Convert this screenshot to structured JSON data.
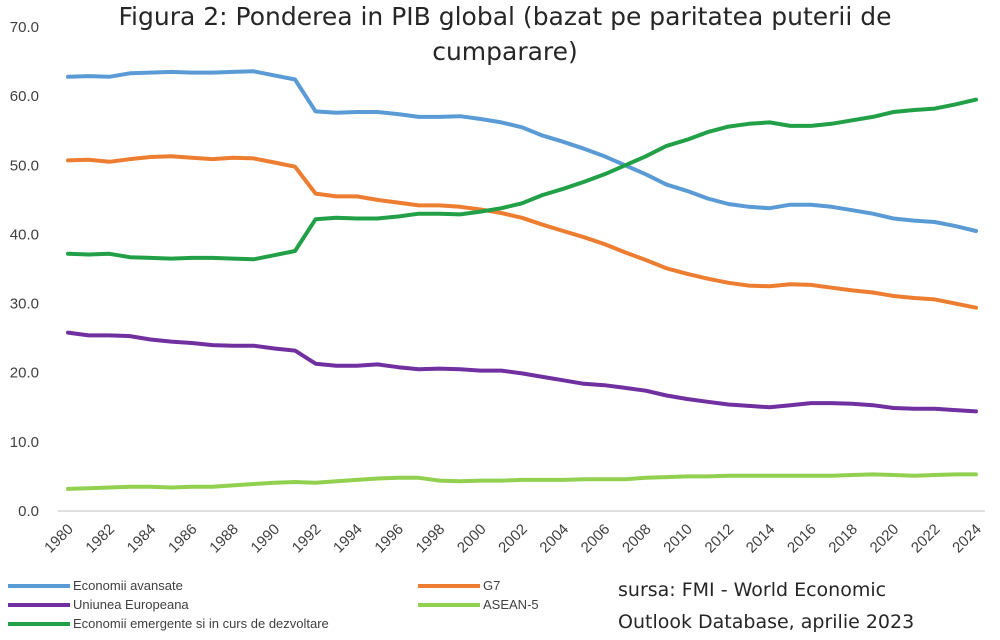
{
  "chart_data": {
    "type": "line",
    "title_lines": [
      "Figura 2: Ponderea in PIB global (bazat pe paritatea puterii de",
      "cumparare)"
    ],
    "source_lines": [
      "sursa: FMI - World Economic",
      "Outlook Database, aprilie 2023"
    ],
    "x": [
      1980,
      1981,
      1982,
      1983,
      1984,
      1985,
      1986,
      1987,
      1988,
      1989,
      1990,
      1991,
      1992,
      1993,
      1994,
      1995,
      1996,
      1997,
      1998,
      1999,
      2000,
      2001,
      2002,
      2003,
      2004,
      2005,
      2006,
      2007,
      2008,
      2009,
      2010,
      2011,
      2012,
      2013,
      2014,
      2015,
      2016,
      2017,
      2018,
      2019,
      2020,
      2021,
      2022,
      2023,
      2024
    ],
    "x_tick_labels": [
      "1980",
      "1982",
      "1984",
      "1986",
      "1988",
      "1990",
      "1992",
      "1994",
      "1996",
      "1998",
      "2000",
      "2002",
      "2004",
      "2006",
      "2008",
      "2010",
      "2012",
      "2014",
      "2016",
      "2018",
      "2020",
      "2022",
      "2024"
    ],
    "y_tick_labels": [
      "0.0",
      "10.0",
      "20.0",
      "30.0",
      "40.0",
      "50.0",
      "60.0",
      "70.0"
    ],
    "ylim": [
      0,
      70
    ],
    "grid": false,
    "legend_position": "bottom-left",
    "series": [
      {
        "name": "Economii avansate",
        "color": "#5b9bd5",
        "values": [
          62.8,
          62.9,
          62.8,
          63.3,
          63.4,
          63.5,
          63.4,
          63.4,
          63.5,
          63.6,
          63.0,
          62.4,
          57.8,
          57.6,
          57.7,
          57.7,
          57.4,
          57.0,
          57.0,
          57.1,
          56.7,
          56.2,
          55.5,
          54.3,
          53.4,
          52.4,
          51.3,
          50.0,
          48.7,
          47.2,
          46.3,
          45.2,
          44.4,
          44.0,
          43.8,
          44.3,
          44.3,
          44.0,
          43.5,
          43.0,
          42.3,
          42.0,
          41.8,
          41.2,
          40.5
        ]
      },
      {
        "name": "G7",
        "color": "#ed7d31",
        "values": [
          50.7,
          50.8,
          50.5,
          50.9,
          51.2,
          51.3,
          51.1,
          50.9,
          51.1,
          51.0,
          50.4,
          49.8,
          45.9,
          45.5,
          45.5,
          45.0,
          44.6,
          44.2,
          44.2,
          44.0,
          43.6,
          43.1,
          42.4,
          41.4,
          40.5,
          39.6,
          38.6,
          37.4,
          36.3,
          35.1,
          34.3,
          33.6,
          33.0,
          32.6,
          32.5,
          32.8,
          32.7,
          32.3,
          31.9,
          31.6,
          31.1,
          30.8,
          30.6,
          30.0,
          29.4
        ]
      },
      {
        "name": "Uniunea Europeana",
        "color": "#7030a0",
        "values": [
          25.8,
          25.4,
          25.4,
          25.3,
          24.8,
          24.5,
          24.3,
          24.0,
          23.9,
          23.9,
          23.5,
          23.2,
          21.3,
          21.0,
          21.0,
          21.2,
          20.8,
          20.5,
          20.6,
          20.5,
          20.3,
          20.3,
          19.9,
          19.4,
          18.9,
          18.4,
          18.2,
          17.8,
          17.4,
          16.7,
          16.2,
          15.8,
          15.4,
          15.2,
          15.0,
          15.3,
          15.6,
          15.6,
          15.5,
          15.3,
          14.9,
          14.8,
          14.8,
          14.6,
          14.4
        ]
      },
      {
        "name": "ASEAN-5",
        "color": "#92d050",
        "values": [
          3.2,
          3.3,
          3.4,
          3.5,
          3.5,
          3.4,
          3.5,
          3.5,
          3.7,
          3.9,
          4.1,
          4.2,
          4.1,
          4.3,
          4.5,
          4.7,
          4.8,
          4.8,
          4.4,
          4.3,
          4.4,
          4.4,
          4.5,
          4.5,
          4.5,
          4.6,
          4.6,
          4.6,
          4.8,
          4.9,
          5.0,
          5.0,
          5.1,
          5.1,
          5.1,
          5.1,
          5.1,
          5.1,
          5.2,
          5.3,
          5.2,
          5.1,
          5.2,
          5.3,
          5.3
        ]
      },
      {
        "name": "Economii emergente si in curs de dezvoltare",
        "color": "#21a047",
        "values": [
          37.2,
          37.1,
          37.2,
          36.7,
          36.6,
          36.5,
          36.6,
          36.6,
          36.5,
          36.4,
          37.0,
          37.6,
          42.2,
          42.4,
          42.3,
          42.3,
          42.6,
          43.0,
          43.0,
          42.9,
          43.3,
          43.8,
          44.5,
          45.7,
          46.6,
          47.6,
          48.7,
          50.0,
          51.3,
          52.8,
          53.7,
          54.8,
          55.6,
          56.0,
          56.2,
          55.7,
          55.7,
          56.0,
          56.5,
          57.0,
          57.7,
          58.0,
          58.2,
          58.8,
          59.5
        ]
      }
    ]
  }
}
